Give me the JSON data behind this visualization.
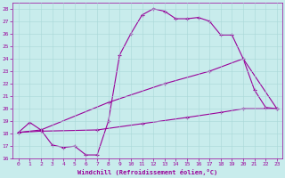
{
  "xlabel": "Windchill (Refroidissement éolien,°C)",
  "bg_color": "#c8ecec",
  "line_color": "#990099",
  "grid_color": "#a8d8d8",
  "xlim": [
    -0.5,
    23.5
  ],
  "ylim": [
    16,
    28.5
  ],
  "xticks": [
    0,
    1,
    2,
    3,
    4,
    5,
    6,
    7,
    8,
    9,
    10,
    11,
    12,
    13,
    14,
    15,
    16,
    17,
    18,
    19,
    20,
    21,
    22,
    23
  ],
  "yticks": [
    16,
    17,
    18,
    19,
    20,
    21,
    22,
    23,
    24,
    25,
    26,
    27,
    28
  ],
  "series1": [
    [
      0,
      18.1
    ],
    [
      1,
      18.9
    ],
    [
      2,
      18.3
    ],
    [
      3,
      17.1
    ],
    [
      4,
      16.9
    ],
    [
      5,
      17.0
    ],
    [
      6,
      16.3
    ],
    [
      7,
      16.3
    ],
    [
      8,
      19.0
    ],
    [
      9,
      24.3
    ],
    [
      10,
      26.0
    ],
    [
      11,
      27.5
    ],
    [
      12,
      28.0
    ],
    [
      13,
      27.8
    ],
    [
      14,
      27.2
    ],
    [
      15,
      27.2
    ],
    [
      16,
      27.3
    ],
    [
      17,
      27.0
    ],
    [
      18,
      25.9
    ],
    [
      19,
      25.9
    ],
    [
      20,
      24.0
    ],
    [
      21,
      21.5
    ],
    [
      22,
      20.1
    ],
    [
      23,
      20.0
    ]
  ],
  "series2": [
    [
      0,
      18.1
    ],
    [
      2,
      18.3
    ],
    [
      8,
      20.5
    ],
    [
      13,
      22.0
    ],
    [
      17,
      23.0
    ],
    [
      20,
      24.0
    ],
    [
      23,
      20.0
    ]
  ],
  "series3": [
    [
      0,
      18.1
    ],
    [
      2,
      18.2
    ],
    [
      7,
      18.3
    ],
    [
      11,
      18.8
    ],
    [
      15,
      19.3
    ],
    [
      18,
      19.7
    ],
    [
      20,
      20.0
    ],
    [
      23,
      20.0
    ]
  ]
}
